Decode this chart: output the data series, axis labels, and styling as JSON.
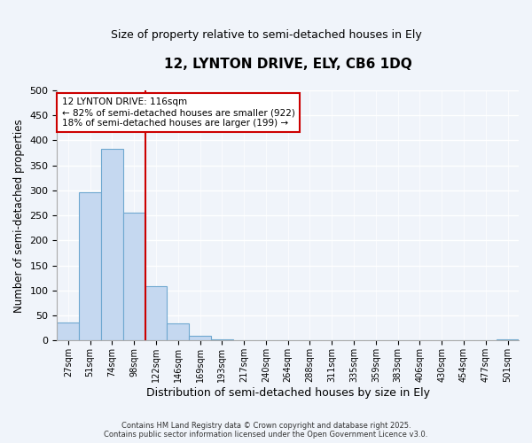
{
  "title_line1": "12, LYNTON DRIVE, ELY, CB6 1DQ",
  "title_line2": "Size of property relative to semi-detached houses in Ely",
  "xlabel": "Distribution of semi-detached houses by size in Ely",
  "ylabel": "Number of semi-detached properties",
  "bar_labels": [
    "27sqm",
    "51sqm",
    "74sqm",
    "98sqm",
    "122sqm",
    "146sqm",
    "169sqm",
    "193sqm",
    "217sqm",
    "240sqm",
    "264sqm",
    "288sqm",
    "311sqm",
    "335sqm",
    "359sqm",
    "383sqm",
    "406sqm",
    "430sqm",
    "454sqm",
    "477sqm",
    "501sqm"
  ],
  "bar_values": [
    36,
    296,
    383,
    255,
    108,
    35,
    10,
    3,
    0,
    0,
    0,
    0,
    0,
    0,
    0,
    0,
    0,
    0,
    0,
    0,
    2
  ],
  "bar_color": "#c5d8f0",
  "bar_edge_color": "#6fa8d0",
  "vline_color": "#cc0000",
  "ylim": [
    0,
    500
  ],
  "yticks": [
    0,
    50,
    100,
    150,
    200,
    250,
    300,
    350,
    400,
    450,
    500
  ],
  "annotation_title": "12 LYNTON DRIVE: 116sqm",
  "annotation_line1": "← 82% of semi-detached houses are smaller (922)",
  "annotation_line2": "18% of semi-detached houses are larger (199) →",
  "annotation_box_color": "#ffffff",
  "annotation_box_edge": "#cc0000",
  "footer_line1": "Contains HM Land Registry data © Crown copyright and database right 2025.",
  "footer_line2": "Contains public sector information licensed under the Open Government Licence v3.0.",
  "background_color": "#f0f4fa",
  "grid_color": "#dce8f5"
}
